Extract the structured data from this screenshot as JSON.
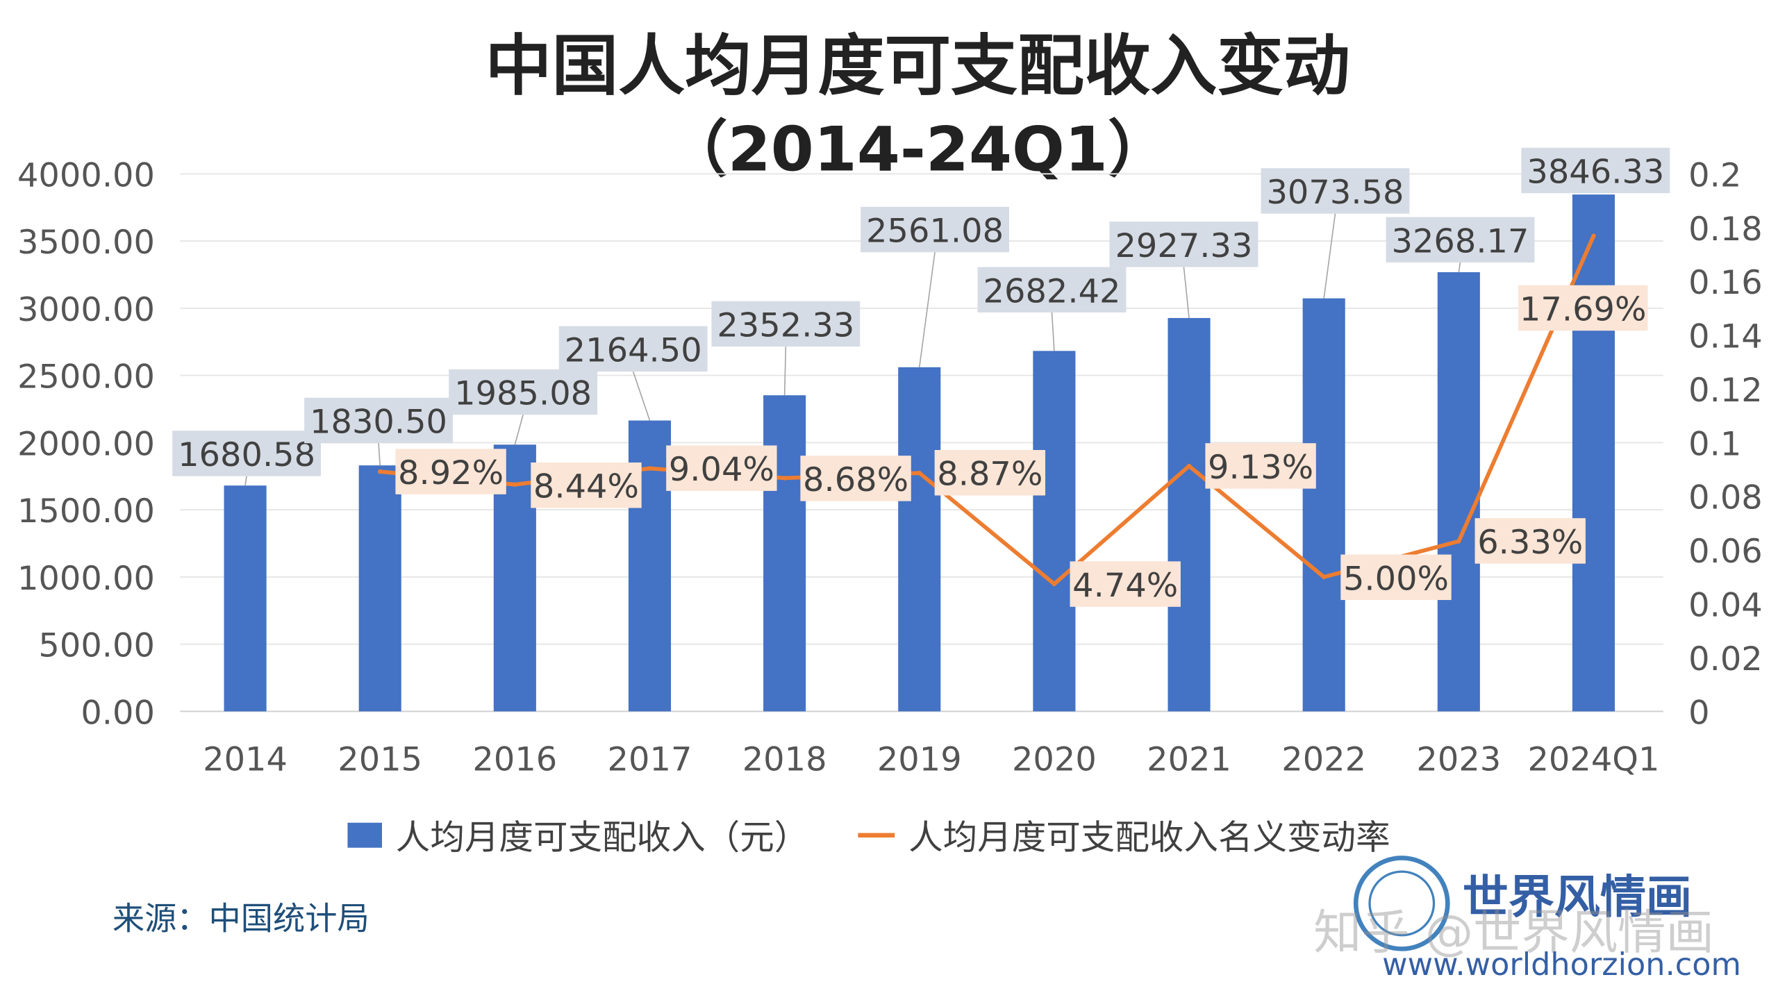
{
  "chart_data": {
    "type": "bar+line",
    "title": "中国人均月度可支配收入变动",
    "subtitle": "（2014-24Q1）",
    "categories": [
      "2014",
      "2015",
      "2016",
      "2017",
      "2018",
      "2019",
      "2020",
      "2021",
      "2022",
      "2023",
      "2024Q1"
    ],
    "series": [
      {
        "name": "人均月度可支配收入（元）",
        "type": "bar",
        "axis": "left",
        "color": "#4472c4",
        "values": [
          1680.58,
          1830.5,
          1985.08,
          2164.5,
          2352.33,
          2561.08,
          2682.42,
          2927.33,
          3073.58,
          3268.17,
          3846.33
        ],
        "labels": [
          "1680.58",
          "1830.50",
          "1985.08",
          "2164.50",
          "2352.33",
          "2561.08",
          "2682.42",
          "2927.33",
          "3073.58",
          "3268.17",
          "3846.33"
        ]
      },
      {
        "name": "人均月度可支配收入名义变动率",
        "type": "line",
        "axis": "right",
        "color": "#ed7d31",
        "values": [
          null,
          0.0892,
          0.0844,
          0.0904,
          0.0868,
          0.0887,
          0.0474,
          0.0913,
          0.05,
          0.0633,
          0.1769
        ],
        "labels": [
          "",
          "8.92%",
          "8.44%",
          "9.04%",
          "8.68%",
          "8.87%",
          "4.74%",
          "9.13%",
          "5.00%",
          "6.33%",
          "17.69%"
        ]
      }
    ],
    "y_left": {
      "min": 0,
      "max": 4000,
      "ticks": [
        "0.00",
        "500.00",
        "1000.00",
        "1500.00",
        "2000.00",
        "2500.00",
        "3000.00",
        "3500.00",
        "4000.00"
      ]
    },
    "y_right": {
      "min": 0,
      "max": 0.2,
      "ticks": [
        "0",
        "0.02",
        "0.04",
        "0.06",
        "0.08",
        "0.1",
        "0.12",
        "0.14",
        "0.16",
        "0.18",
        "0.2"
      ]
    },
    "grid": true,
    "legend_position": "bottom"
  },
  "source": "来源：中国统计局",
  "watermark": {
    "brand": "世界风情画",
    "zhihu": "知乎 @世界风情画",
    "url": "www.worldhorzion.com"
  }
}
